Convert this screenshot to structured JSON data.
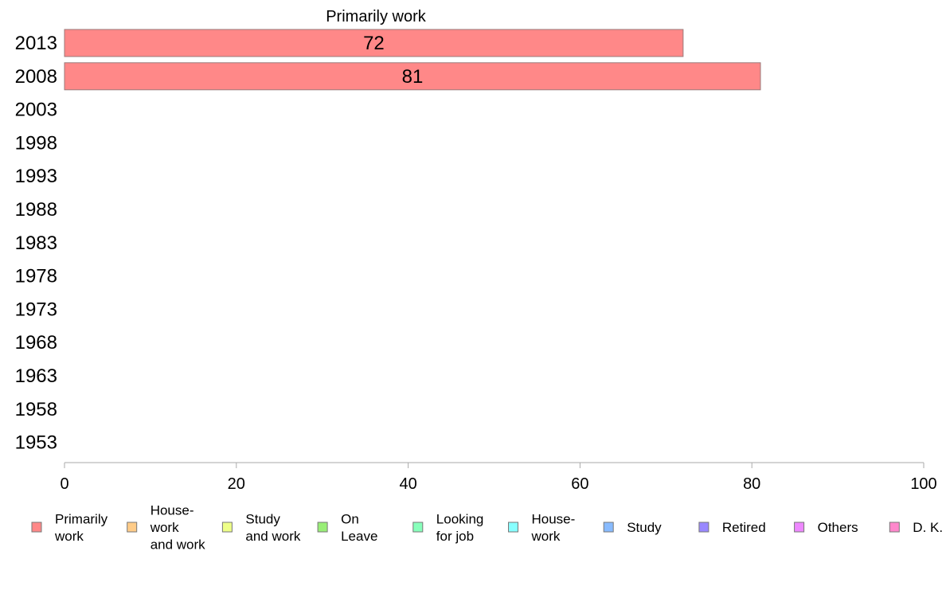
{
  "chart_data": {
    "type": "bar",
    "orientation": "horizontal",
    "title": "Primarily work",
    "categories": [
      "2013",
      "2008",
      "2003",
      "1998",
      "1993",
      "1988",
      "1983",
      "1978",
      "1973",
      "1968",
      "1963",
      "1958",
      "1953"
    ],
    "series": [
      {
        "name": "Primarily work",
        "color": "#ff8888",
        "values": [
          72,
          81,
          null,
          null,
          null,
          null,
          null,
          null,
          null,
          null,
          null,
          null,
          null
        ]
      }
    ],
    "value_labels": [
      "72",
      "81"
    ],
    "xlim": [
      0,
      100
    ],
    "xticks": [
      0,
      20,
      40,
      60,
      80,
      100
    ],
    "xtick_labels": [
      "0",
      "20",
      "40",
      "60",
      "80",
      "100"
    ],
    "xlabel": "",
    "ylabel": "",
    "grid": false,
    "legend_position": "bottom",
    "legend": [
      {
        "lines": [
          "Primarily",
          "work"
        ],
        "color": "#ff8888"
      },
      {
        "lines": [
          "House-",
          "work",
          "and work"
        ],
        "color": "#ffcc88"
      },
      {
        "lines": [
          "Study",
          "and work"
        ],
        "color": "#eeff88"
      },
      {
        "lines": [
          "On",
          "Leave"
        ],
        "color": "#99ee77"
      },
      {
        "lines": [
          "Looking",
          "for job"
        ],
        "color": "#88ffbb"
      },
      {
        "lines": [
          "House-",
          "work"
        ],
        "color": "#88ffff"
      },
      {
        "lines": [
          "Study"
        ],
        "color": "#88bbff"
      },
      {
        "lines": [
          "Retired"
        ],
        "color": "#9988ff"
      },
      {
        "lines": [
          "Others"
        ],
        "color": "#ee88ff"
      },
      {
        "lines": [
          "D. K."
        ],
        "color": "#ff88cc"
      }
    ]
  }
}
